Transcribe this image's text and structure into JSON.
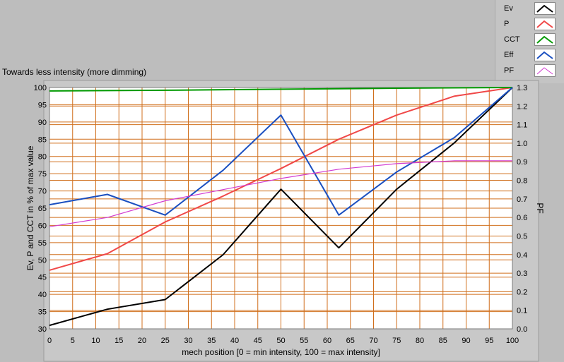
{
  "chart_data": {
    "type": "line",
    "title": "Towards less intensity (more dimming)",
    "xlabel": "mech position [0 = min intensity, 100 = max intensity]",
    "ylabel": "Ev, P and CCT in % of max value",
    "y2label": "PF",
    "xlim": [
      0,
      100
    ],
    "ylim": [
      30,
      100
    ],
    "y2lim": [
      0.0,
      1.3
    ],
    "xticks": [
      "0",
      "5",
      "10",
      "15",
      "20",
      "25",
      "30",
      "35",
      "40",
      "45",
      "50",
      "55",
      "60",
      "65",
      "70",
      "75",
      "80",
      "85",
      "90",
      "95",
      "100"
    ],
    "yticks": [
      "30",
      "35",
      "40",
      "45",
      "50",
      "55",
      "60",
      "65",
      "70",
      "75",
      "80",
      "85",
      "90",
      "95",
      "100"
    ],
    "y2ticks": [
      "0.0",
      "0.1",
      "0.2",
      "0.3",
      "0.4",
      "0.5",
      "0.6",
      "0.7",
      "0.8",
      "0.9",
      "1.0",
      "1.1",
      "1.2",
      "1.3"
    ],
    "grid": true,
    "legend_position": "top-right",
    "series": [
      {
        "name": "Ev",
        "color": "#000000",
        "axis": "left",
        "x": [
          0,
          12.5,
          25,
          37.5,
          50,
          62.5,
          75,
          87.5,
          100
        ],
        "y": [
          31,
          35.7,
          38.5,
          51.5,
          70.5,
          53.5,
          70.5,
          84,
          100
        ]
      },
      {
        "name": "P",
        "color": "#f04848",
        "axis": "left",
        "x": [
          0,
          12.5,
          25,
          37.5,
          50,
          62.5,
          75,
          87.5,
          100
        ],
        "y": [
          47,
          51.8,
          61,
          68.5,
          76.5,
          85,
          92,
          97.5,
          100
        ]
      },
      {
        "name": "CCT",
        "color": "#009900",
        "axis": "left",
        "x": [
          0,
          25,
          50,
          75,
          100
        ],
        "y": [
          99,
          99.2,
          99.5,
          99.8,
          100
        ]
      },
      {
        "name": "Eff",
        "color": "#1a4fc0",
        "axis": "left",
        "x": [
          0,
          12.5,
          25,
          37.5,
          50,
          62.5,
          75,
          87.5,
          100
        ],
        "y": [
          66,
          69,
          63,
          76,
          92,
          63,
          75.5,
          85.5,
          100
        ]
      },
      {
        "name": "PF",
        "color": "#d23cd2",
        "axis": "right",
        "x": [
          0,
          12.5,
          25,
          37.5,
          50,
          62.5,
          75,
          87.5,
          100
        ],
        "y": [
          0.55,
          0.6,
          0.69,
          0.75,
          0.81,
          0.86,
          0.89,
          0.905,
          0.905
        ]
      }
    ]
  }
}
